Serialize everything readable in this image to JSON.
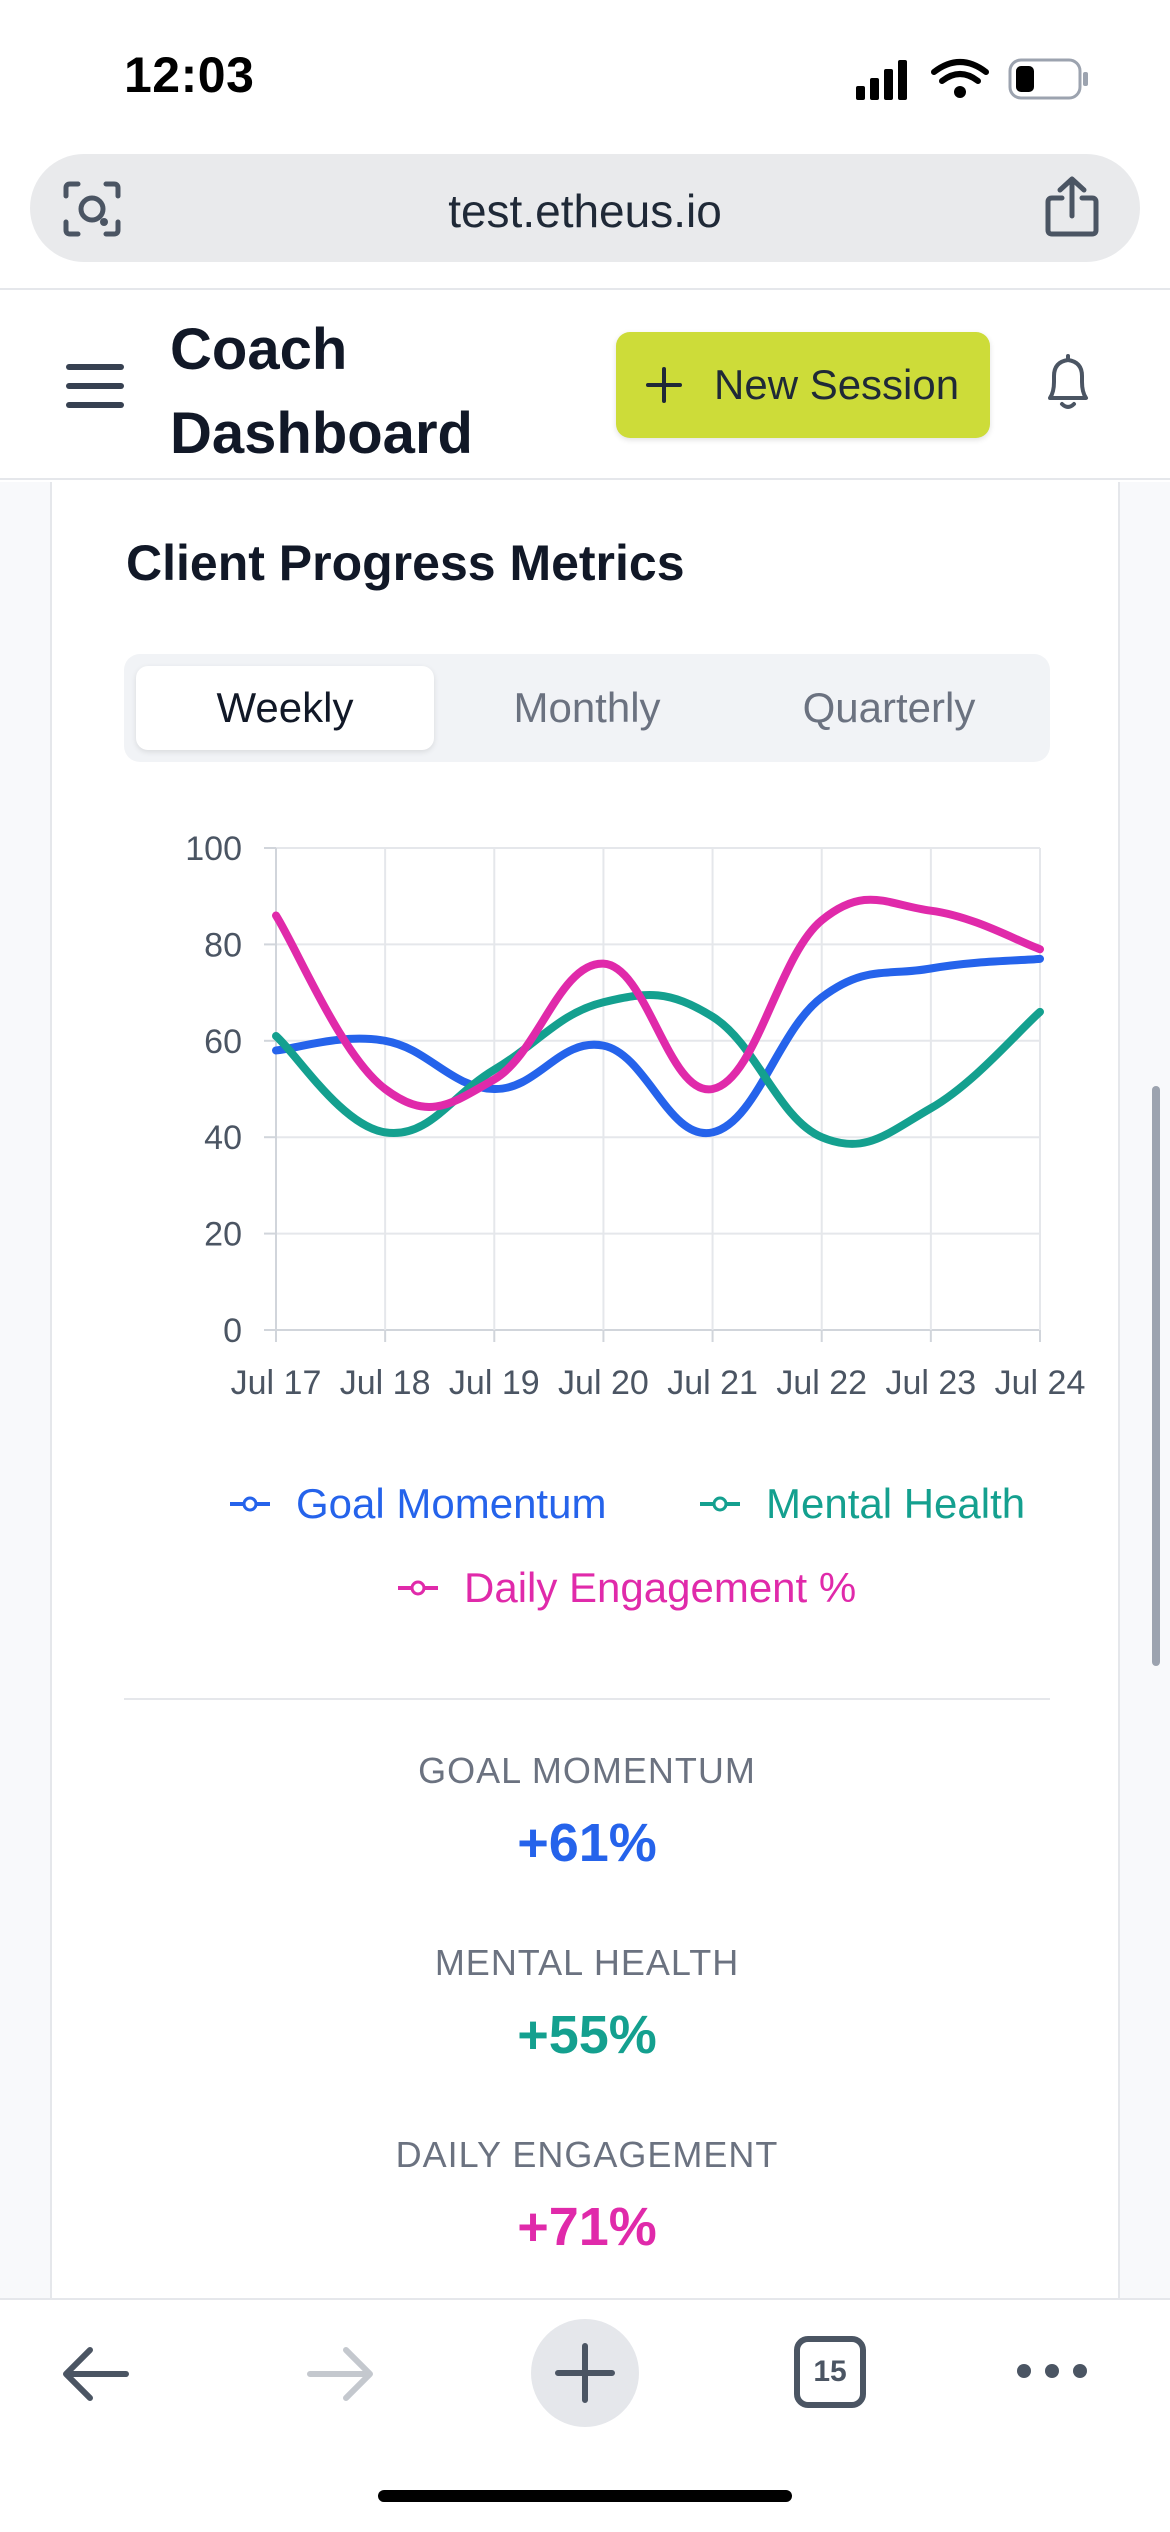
{
  "status_bar": {
    "time": "12:03"
  },
  "browser": {
    "url": "test.etheus.io",
    "tab_count": "15"
  },
  "header": {
    "title": "Coach Dashboard",
    "new_session_label": "New Session"
  },
  "card": {
    "title": "Client Progress Metrics",
    "tabs": [
      {
        "label": "Weekly",
        "active": true
      },
      {
        "label": "Monthly",
        "active": false
      },
      {
        "label": "Quarterly",
        "active": false
      }
    ]
  },
  "chart_data": {
    "type": "line",
    "categories": [
      "Jul 17",
      "Jul 18",
      "Jul 19",
      "Jul 20",
      "Jul 21",
      "Jul 22",
      "Jul 23",
      "Jul 24"
    ],
    "ylim": [
      0,
      100
    ],
    "yticks": [
      0,
      20,
      40,
      60,
      80,
      100
    ],
    "grid": true,
    "legend_position": "bottom",
    "series": [
      {
        "name": "Goal Momentum",
        "color": "#2563eb",
        "values": [
          58,
          60,
          50,
          59,
          41,
          69,
          75,
          77
        ]
      },
      {
        "name": "Mental Health",
        "color": "#14a08f",
        "values": [
          61,
          41,
          54,
          68,
          65,
          40,
          46,
          66
        ]
      },
      {
        "name": "Daily Engagement %",
        "color": "#e02aaa",
        "values": [
          86,
          50,
          52,
          76,
          50,
          85,
          87,
          79
        ]
      }
    ]
  },
  "stats": [
    {
      "label": "GOAL MOMENTUM",
      "value": "+61%",
      "color": "#2563eb"
    },
    {
      "label": "MENTAL HEALTH",
      "value": "+55%",
      "color": "#14a08f"
    },
    {
      "label": "DAILY ENGAGEMENT",
      "value": "+71%",
      "color": "#e02aaa"
    }
  ]
}
